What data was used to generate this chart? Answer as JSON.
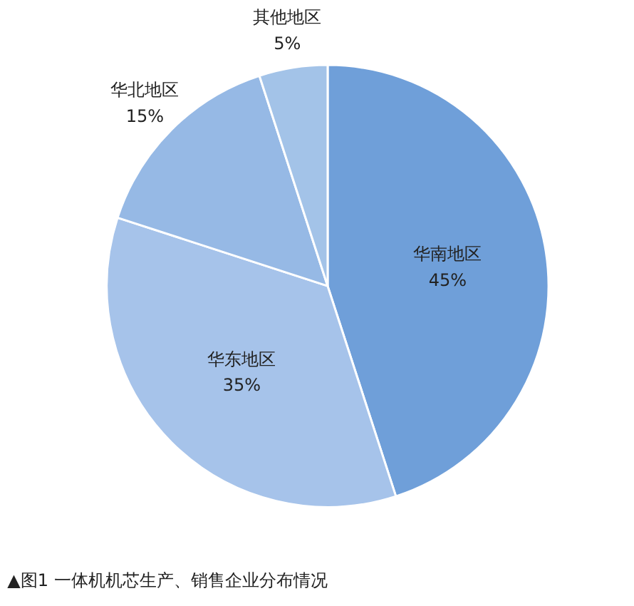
{
  "chart_data": {
    "type": "pie",
    "title": "▲图1 一体机机芯生产、销售企业分布情况",
    "categories": [
      "华南地区",
      "华东地区",
      "华北地区",
      "其他地区"
    ],
    "values": [
      45,
      35,
      15,
      5
    ],
    "value_labels": [
      "45%",
      "35%",
      "15%",
      "5%"
    ],
    "colors": [
      "#6f9fd9",
      "#a6c3ea",
      "#96b9e5",
      "#a3c3e8"
    ]
  }
}
